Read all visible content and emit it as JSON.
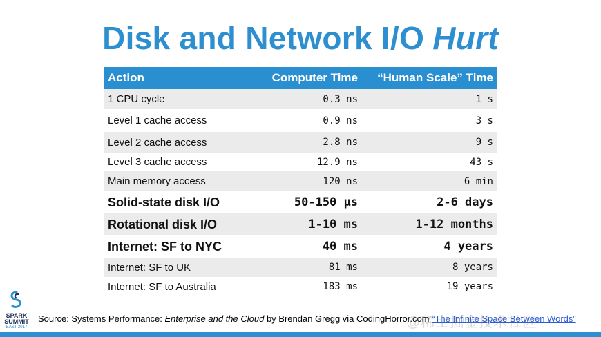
{
  "slide": {
    "title_main": "Disk and Network I/O",
    "title_emph": "Hurt"
  },
  "table": {
    "headers": [
      "Action",
      "Computer Time",
      "“Human Scale” Time"
    ],
    "rows": [
      {
        "action": "1 CPU cycle",
        "computer_time": "0.3 ns",
        "human_time": "1 s"
      },
      {
        "action": "Level 1 cache access",
        "computer_time": "0.9 ns",
        "human_time": "3 s"
      },
      {
        "action": "Level 2 cache access",
        "computer_time": "2.8 ns",
        "human_time": "9 s"
      },
      {
        "action": "Level 3 cache access",
        "computer_time": "12.9 ns",
        "human_time": "43 s"
      },
      {
        "action": "Main memory access",
        "computer_time": "120 ns",
        "human_time": "6 min"
      },
      {
        "action": "Solid-state disk I/O",
        "computer_time": "50-150 μs",
        "human_time": "2-6 days"
      },
      {
        "action": "Rotational disk I/O",
        "computer_time": "1-10 ms",
        "human_time": "1-12 months"
      },
      {
        "action": "Internet: SF to NYC",
        "computer_time": "40 ms",
        "human_time": "4 years"
      },
      {
        "action": "Internet: SF to UK",
        "computer_time": "81 ms",
        "human_time": "8 years"
      },
      {
        "action": "Internet: SF to Australia",
        "computer_time": "183 ms",
        "human_time": "19 years"
      }
    ]
  },
  "logo": {
    "line1": "SPARK",
    "line2": "SUMMIT",
    "line3": "EAST 2017"
  },
  "source": {
    "prefix": "Source: Systems Performance: ",
    "book": "Enterprise and the Cloud",
    "middle": " by Brendan Gregg via CodingHorror.com ",
    "link_text": "“The Infinite Space Between Words”"
  },
  "watermark": "@稀土掘金技术社区",
  "colors": {
    "accent": "#2d8fcf",
    "header_bg": "#2a8fd0",
    "row_shade": "#ebebeb",
    "link": "#2a5bd7"
  }
}
